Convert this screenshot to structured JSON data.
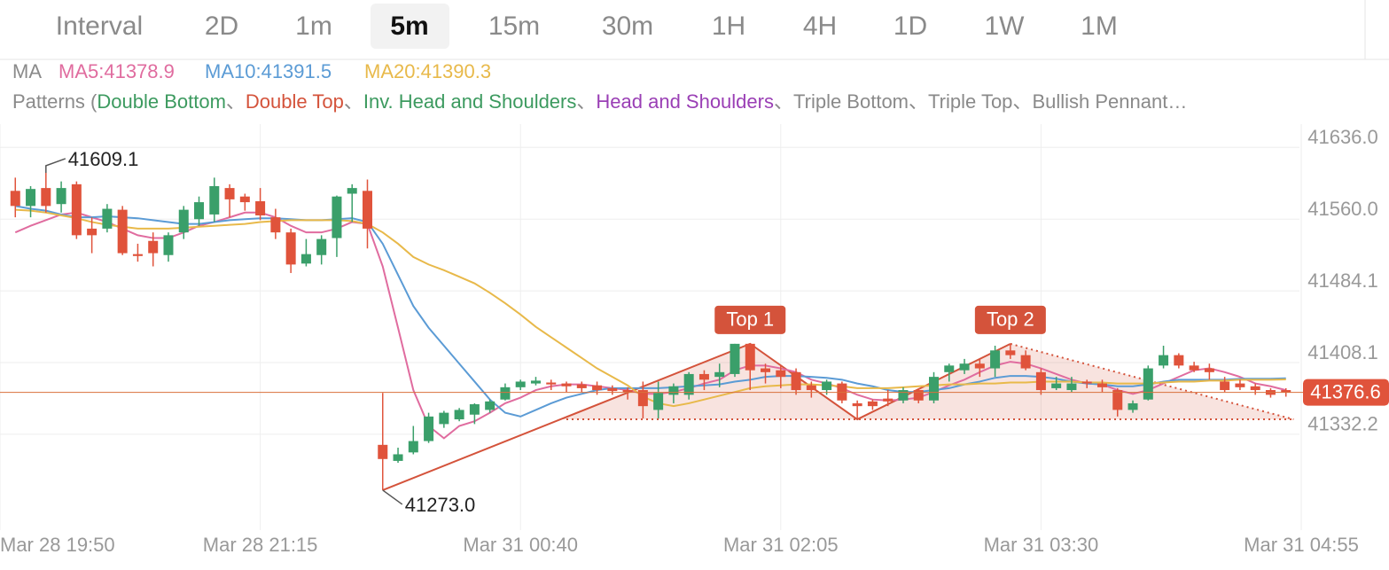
{
  "header": {
    "label": "Interval",
    "options": [
      "2D",
      "1m",
      "5m",
      "15m",
      "30m",
      "1H",
      "4H",
      "1D",
      "1W",
      "1M"
    ],
    "selected": 2
  },
  "indicators": {
    "label": "MA"
  },
  "patterns": {
    "prefix": "Patterns (",
    "separator": "、",
    "items": [
      {
        "name": "Double Bottom",
        "color": "#3c9a5f"
      },
      {
        "name": "Double Top",
        "color": "#d4533b"
      },
      {
        "name": "Inv. Head and Shoulders",
        "color": "#3c9a5f"
      },
      {
        "name": "Head and Shoulders",
        "color": "#9a3fb5"
      },
      {
        "name": "Triple Bottom",
        "color": "#8a8a8a"
      },
      {
        "name": "Triple Top",
        "color": "#8a8a8a"
      },
      {
        "name": "Bullish Pennant…",
        "color": "#8a8a8a"
      }
    ]
  },
  "chart_data": {
    "type": "candlestick",
    "x": [
      1,
      2,
      3,
      4,
      5,
      6,
      7,
      8,
      9,
      10,
      11,
      12,
      13,
      14,
      15,
      16,
      17,
      18,
      19,
      20,
      21,
      22,
      23,
      24,
      25,
      26,
      27,
      28,
      29,
      30,
      31,
      32,
      33,
      34,
      35,
      36,
      37,
      38,
      39,
      40,
      41,
      42,
      43,
      44,
      45,
      46,
      47,
      48,
      49,
      50,
      51,
      52,
      53,
      54,
      55,
      56,
      57,
      58,
      59,
      60,
      61,
      62,
      63,
      64,
      65,
      66,
      67,
      68,
      69,
      70,
      71,
      72,
      73,
      74,
      75,
      76,
      77,
      78,
      79,
      80,
      81,
      82,
      83,
      84
    ],
    "open": [
      41590,
      41574,
      41593,
      41576,
      41597,
      41550,
      41550,
      41570,
      41523,
      41537,
      41522,
      41546,
      41560,
      41565,
      41593,
      41584,
      41579,
      41562,
      41546,
      41513,
      41522,
      41540,
      41587,
      41590,
      41321,
      41304,
      41313,
      41325,
      41343,
      41348,
      41353,
      41358,
      41369,
      41382,
      41386,
      41387,
      41386,
      41385,
      41384,
      41381,
      41379,
      41379,
      41358,
      41374,
      41374,
      41396,
      41393,
      41396,
      41428,
      41402,
      41400,
      41398,
      41384,
      41379,
      41386,
      41365,
      41367,
      41370,
      41368,
      41379,
      41368,
      41398,
      41400,
      41407,
      41402,
      41421,
      41416,
      41398,
      41381,
      41379,
      41388,
      41386,
      41379,
      41358,
      41369,
      41405,
      41416,
      41405,
      41402,
      41388,
      41386,
      41383,
      41379,
      41379
    ],
    "high": [
      41604,
      41595,
      41609.1,
      41600,
      41600,
      41562,
      41576,
      41574,
      41534,
      41546,
      41546,
      41574,
      41584,
      41604,
      41597,
      41587,
      41593,
      41571,
      41550,
      41539,
      41543,
      41585,
      41597,
      41602,
      41376,
      41318,
      41341,
      41355,
      41357,
      41360,
      41365,
      41369,
      41386,
      41390,
      41393,
      41390,
      41388,
      41388,
      41388,
      41384,
      41382,
      41388,
      41388,
      41386,
      41398,
      41400,
      41407,
      41428,
      41428,
      41407,
      41405,
      41402,
      41388,
      41390,
      41388,
      41368,
      41369,
      41379,
      41382,
      41381,
      41398,
      41407,
      41412,
      41412,
      41426,
      41428,
      41421,
      41402,
      41393,
      41393,
      41390,
      41390,
      41381,
      41368,
      41405,
      41426,
      41418,
      41409,
      41407,
      41393,
      41390,
      41386,
      41381,
      41381
    ],
    "low": [
      41562,
      41562,
      41567,
      41567,
      41539,
      41524,
      41546,
      41522,
      41515,
      41510,
      41515,
      41539,
      41553,
      41557,
      41562,
      41569,
      41559,
      41539,
      41503,
      41510,
      41512,
      41520,
      41557,
      41529,
      41273.0,
      41302,
      41311,
      41323,
      41339,
      41346,
      41343,
      41355,
      41368,
      41379,
      41384,
      41379,
      41377,
      41377,
      41374,
      41374,
      41369,
      41349,
      41349,
      41365,
      41369,
      41379,
      41382,
      41393,
      41379,
      41386,
      41381,
      41374,
      41371,
      41374,
      41365,
      41349,
      41358,
      41362,
      41365,
      41365,
      41365,
      41388,
      41396,
      41393,
      41393,
      41412,
      41400,
      41374,
      41379,
      41377,
      41381,
      41377,
      41351,
      41355,
      41368,
      41402,
      41402,
      41398,
      41390,
      41377,
      41379,
      41374,
      41371,
      41372
    ],
    "close": [
      41574,
      41592,
      41574,
      41593,
      41543,
      41543,
      41571,
      41524,
      41521,
      41524,
      41543,
      41570,
      41578,
      41595,
      41581,
      41578,
      41564,
      41546,
      41512,
      41523,
      41539,
      41584,
      41593,
      41550,
      41306,
      41311,
      41325,
      41351,
      41355,
      41358,
      41364,
      41367,
      41382,
      41388,
      41389,
      41385,
      41383,
      41381,
      41379,
      41378,
      41377,
      41362,
      41376,
      41383,
      41396,
      41390,
      41398,
      41428,
      41400,
      41398,
      41393,
      41379,
      41379,
      41388,
      41368,
      41362,
      41362,
      41367,
      41379,
      41368,
      41393,
      41405,
      41407,
      41402,
      41421,
      41416,
      41402,
      41379,
      41386,
      41386,
      41386,
      41382,
      41358,
      41365,
      41402,
      41416,
      41405,
      41400,
      41398,
      41379,
      41382,
      41379,
      41374,
      41376.6
    ],
    "up_color": "#3a9f6a",
    "down_color": "#e0533b",
    "series": [
      {
        "label": "MA5:41378.9",
        "color": "#e06c9f",
        "values": [
          41546,
          41553,
          41559,
          41565,
          41567,
          41562,
          41557,
          41550,
          41543,
          41540,
          41540,
          41546,
          41553,
          41557,
          41562,
          41567,
          41567,
          41562,
          41553,
          41546,
          41546,
          41550,
          41557,
          41555,
          41510,
          41445,
          41379,
          41341,
          41328,
          41341,
          41346,
          41355,
          41365,
          41371,
          41379,
          41383,
          41385,
          41385,
          41383,
          41381,
          41379,
          41375,
          41375,
          41377,
          41381,
          41386,
          41390,
          41400,
          41405,
          41405,
          41402,
          41398,
          41390,
          41386,
          41381,
          41374,
          41369,
          41368,
          41369,
          41371,
          41377,
          41384,
          41390,
          41398,
          41405,
          41409,
          41407,
          41402,
          41396,
          41390,
          41386,
          41385,
          41379,
          41375,
          41379,
          41386,
          41393,
          41400,
          41402,
          41398,
          41393,
          41386,
          41383,
          41378.9
        ]
      },
      {
        "label": "MA10:41391.5",
        "color": "#5b9bd5",
        "values": [
          41574,
          41571,
          41569,
          41565,
          41562,
          41562,
          41563,
          41562,
          41561,
          41559,
          41557,
          41555,
          41555,
          41557,
          41559,
          41560,
          41561,
          41561,
          41560,
          41559,
          41559,
          41560,
          41561,
          41557,
          41534,
          41501,
          41468,
          41445,
          41426,
          41407,
          41388,
          41369,
          41355,
          41351,
          41358,
          41365,
          41371,
          41375,
          41379,
          41381,
          41381,
          41381,
          41381,
          41382,
          41383,
          41384,
          41385,
          41388,
          41390,
          41393,
          41394,
          41394,
          41393,
          41392,
          41390,
          41386,
          41383,
          41379,
          41377,
          41377,
          41379,
          41381,
          41385,
          41388,
          41392,
          41394,
          41394,
          41393,
          41391,
          41388,
          41386,
          41385,
          41383,
          41383,
          41385,
          41388,
          41390,
          41390,
          41390,
          41390,
          41391,
          41391,
          41391,
          41391.5
        ]
      },
      {
        "label": "MA20:41390.3",
        "color": "#e8b94a",
        "values": [
          41570,
          41569,
          41567,
          41564,
          41561,
          41557,
          41554,
          41552,
          41550,
          41550,
          41550,
          41551,
          41552,
          41553,
          41554,
          41555,
          41557,
          41558,
          41559,
          41559,
          41559,
          41559,
          41558,
          41555,
          41546,
          41534,
          41520,
          41512,
          41506,
          41499,
          41492,
          41482,
          41471,
          41459,
          41446,
          41435,
          41424,
          41413,
          41402,
          41393,
          41384,
          41372,
          41365,
          41362,
          41365,
          41369,
          41373,
          41377,
          41381,
          41383,
          41384,
          41385,
          41385,
          41384,
          41383,
          41381,
          41381,
          41381,
          41382,
          41383,
          41384,
          41385,
          41385,
          41386,
          41386,
          41387,
          41387,
          41388,
          41388,
          41388,
          41387,
          41387,
          41386,
          41386,
          41386,
          41387,
          41388,
          41388,
          41389,
          41389,
          41390,
          41390,
          41390,
          41390.3
        ]
      }
    ],
    "low_label": "41273.0",
    "pattern": {
      "color": "#d4533b",
      "points_x": [
        25,
        49,
        56,
        66,
        84.5
      ],
      "points_y": [
        41273.0,
        41428,
        41348,
        41428,
        41348
      ],
      "neckline": 41348,
      "neckline_start_x": 37,
      "labels": [
        "Top 1",
        "Top 2"
      ]
    },
    "xlim": [
      0,
      85
    ],
    "ylim": [
      41230.7,
      41660.7
    ],
    "xticks": [
      {
        "value": 0,
        "label": "Mar 28 19:50"
      },
      {
        "value": 17,
        "label": "Mar 28 21:15"
      },
      {
        "value": 34,
        "label": "Mar 31 00:40"
      },
      {
        "value": 51,
        "label": "Mar 31 02:05"
      },
      {
        "value": 68,
        "label": "Mar 31 03:30"
      },
      {
        "value": 85,
        "label": "Mar 31 04:55"
      }
    ],
    "yticks": [
      {
        "value": 41636,
        "label": "41636.0"
      },
      {
        "value": 41560,
        "label": "41560.0"
      },
      41484.1,
      41408.1,
      41332.2
    ],
    "grid": true,
    "last_price_color": "#d9713c"
  }
}
